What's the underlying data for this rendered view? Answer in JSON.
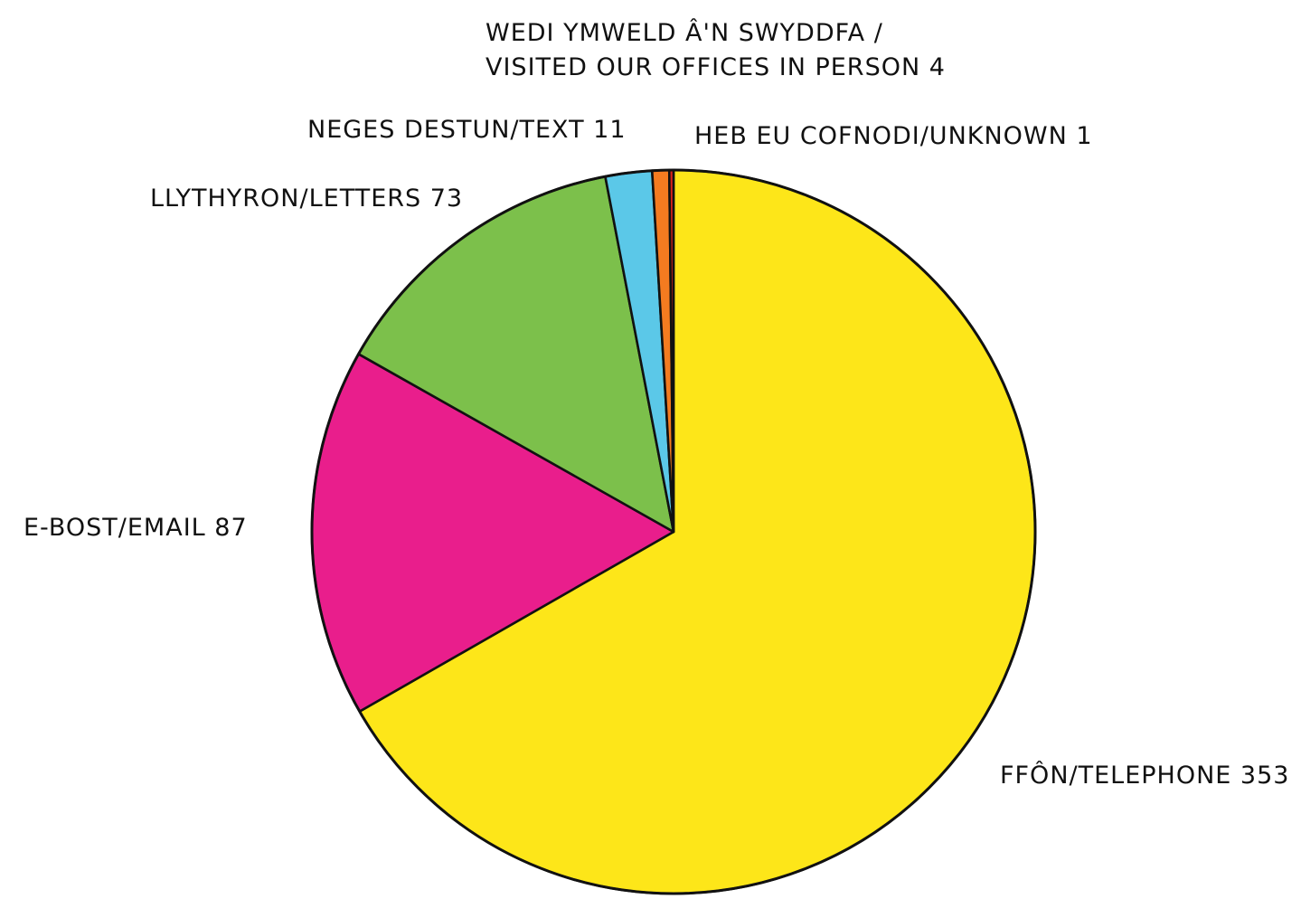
{
  "chart_data": {
    "type": "pie",
    "title": "",
    "slices": [
      {
        "label": "FFÔN/TELEPHONE 353",
        "value": 353,
        "color": "#fde619"
      },
      {
        "label": "E-BOST/EMAIL 87",
        "value": 87,
        "color": "#e91e8c"
      },
      {
        "label": "LLYTHYRON/LETTERS 73",
        "value": 73,
        "color": "#7cc04b"
      },
      {
        "label": "NEGES DESTUN/TEXT 11",
        "value": 11,
        "color": "#5bc8e8"
      },
      {
        "label_lines": [
          "WEDI YMWELD Â'N SWYDDFA /",
          "VISITED OUR OFFICES IN PERSON 4"
        ],
        "value": 4,
        "color": "#f47b20"
      },
      {
        "label": "HEB EU COFNODI/UNKNOWN 1",
        "value": 1,
        "color": "#e2231a"
      }
    ]
  }
}
